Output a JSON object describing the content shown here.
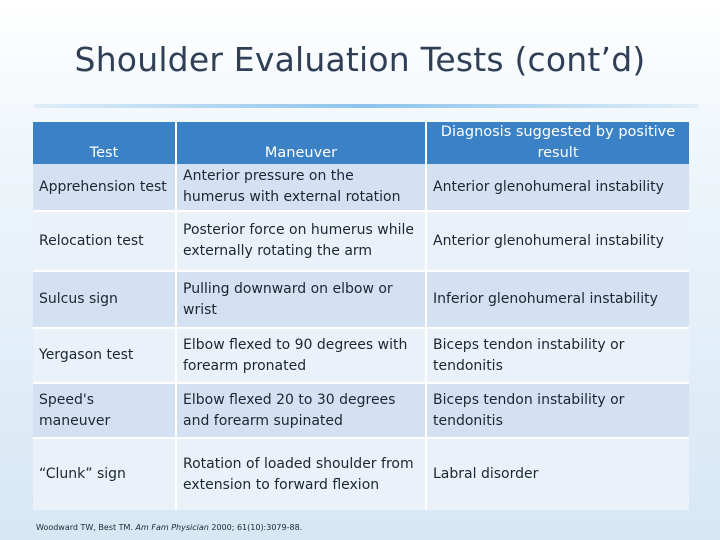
{
  "title": "Shoulder Evaluation Tests (cont’d)",
  "headers": [
    "Test",
    "Maneuver",
    "Diagnosis suggested by positive result"
  ],
  "rows": [
    {
      "test": "Apprehension test",
      "maneuver": "Anterior pressure on the humerus with external rotation",
      "diagnosis": "Anterior glenohumeral instability"
    },
    {
      "test": "Relocation test",
      "maneuver": "Posterior force on humerus while externally rotating the arm",
      "diagnosis": "Anterior glenohumeral instability"
    },
    {
      "test": "Sulcus sign",
      "maneuver": "Pulling downward on elbow or wrist",
      "diagnosis": "Inferior glenohumeral instability"
    },
    {
      "test": "Yergason test",
      "maneuver": "Elbow flexed to 90 degrees with forearm pronated",
      "diagnosis": "Biceps tendon instability or tendonitis"
    },
    {
      "test": "Speed's maneuver",
      "maneuver": "Elbow flexed 20 to 30 degrees and forearm supinated",
      "diagnosis": "Biceps tendon instability or tendonitis"
    },
    {
      "test": "“Clunk” sign",
      "maneuver": "Rotation of loaded shoulder from extension to forward flexion",
      "diagnosis": "Labral disorder"
    }
  ],
  "citation": {
    "authors": "Woodward TW, Best TM.",
    "journal": "Am Fam Physician",
    "details": "2000; 61(10):3079-88."
  },
  "colors": {
    "header": "#3a82c5",
    "row_dark": "#d3e1f2",
    "row_light": "#eaf1f9"
  }
}
